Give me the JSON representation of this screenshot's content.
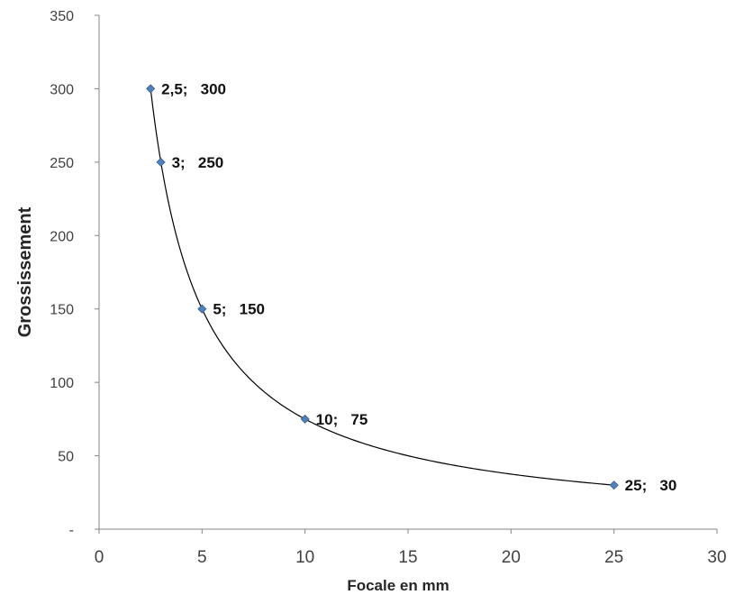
{
  "chart_data": {
    "type": "scatter",
    "title": "",
    "xlabel": "Focale en mm",
    "ylabel": "Grossissement",
    "xlim": [
      0,
      30
    ],
    "ylim": [
      0,
      350
    ],
    "x_ticks": [
      "0",
      "5",
      "10",
      "15",
      "20",
      "25",
      "30"
    ],
    "y_ticks": [
      "-",
      "50",
      "100",
      "150",
      "200",
      "250",
      "300",
      "350"
    ],
    "grid": false,
    "legend": "none",
    "trendline": "power (smooth curve through points)",
    "marker_color": "#4F81BD",
    "line_color": "#000000",
    "series": [
      {
        "points": [
          {
            "x": 2.5,
            "y": 300,
            "label": "2,5;   300"
          },
          {
            "x": 3,
            "y": 250,
            "label": "3;   250"
          },
          {
            "x": 5,
            "y": 150,
            "label": "5;   150"
          },
          {
            "x": 10,
            "y": 75,
            "label": "10;   75"
          },
          {
            "x": 25,
            "y": 30,
            "label": "25;   30"
          }
        ]
      }
    ]
  }
}
